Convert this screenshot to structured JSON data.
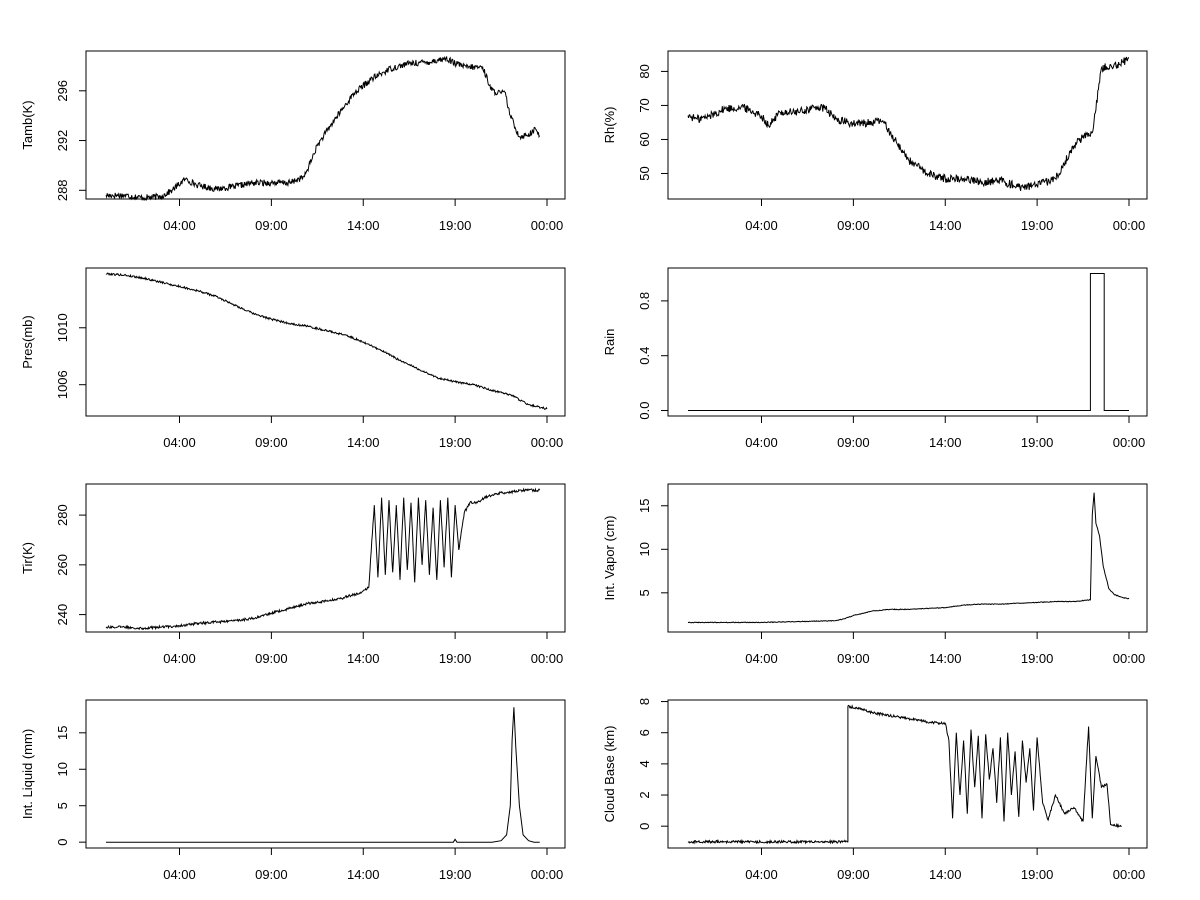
{
  "chart_data": [
    {
      "type": "line",
      "title": "",
      "xlabel": "",
      "ylabel": "Tamb(K)",
      "xlim": [
        0,
        24
      ],
      "ylim": [
        287.3,
        299.2
      ],
      "xticks": [
        {
          "v": 4,
          "label": "04:00"
        },
        {
          "v": 9,
          "label": "09:00"
        },
        {
          "v": 14,
          "label": "14:00"
        },
        {
          "v": 19,
          "label": "19:00"
        },
        {
          "v": 24,
          "label": "00:00"
        }
      ],
      "yticks": [
        {
          "v": 288,
          "label": "288"
        },
        {
          "v": 292,
          "label": "292"
        },
        {
          "v": 296,
          "label": "296"
        }
      ],
      "noise": 0.25,
      "series": [
        {
          "x": [
            0,
            1,
            2,
            3,
            3.6,
            4.3,
            5,
            6,
            7,
            8,
            9,
            10,
            10.8,
            11.5,
            12.5,
            13.5,
            14.5,
            15.5,
            16.5,
            17.5,
            18.5,
            19,
            19.6,
            20.5,
            21,
            21.5,
            21.7,
            22,
            22.5,
            23,
            23.4,
            23.6
          ],
          "y": [
            287.6,
            287.6,
            287.4,
            287.5,
            288.0,
            288.9,
            288.4,
            288.1,
            288.3,
            288.6,
            288.6,
            288.6,
            289.1,
            291.6,
            293.8,
            295.8,
            297.0,
            297.8,
            298.2,
            298.3,
            298.6,
            298.2,
            297.9,
            297.9,
            296.0,
            295.8,
            295.9,
            294.0,
            292.3,
            292.5,
            292.9,
            292.4
          ]
        }
      ]
    },
    {
      "type": "line",
      "title": "",
      "xlabel": "",
      "ylabel": "Rh(%)",
      "xlim": [
        0,
        24
      ],
      "ylim": [
        42.5,
        86
      ],
      "xticks": [
        {
          "v": 4,
          "label": "04:00"
        },
        {
          "v": 9,
          "label": "09:00"
        },
        {
          "v": 14,
          "label": "14:00"
        },
        {
          "v": 19,
          "label": "19:00"
        },
        {
          "v": 24,
          "label": "00:00"
        }
      ],
      "yticks": [
        {
          "v": 50,
          "label": "50"
        },
        {
          "v": 60,
          "label": "60"
        },
        {
          "v": 70,
          "label": "70"
        },
        {
          "v": 80,
          "label": "80"
        }
      ],
      "noise": 1.2,
      "series": [
        {
          "x": [
            0,
            0.5,
            1,
            2,
            3,
            4,
            4.4,
            5,
            6,
            7,
            7.5,
            8,
            9,
            10,
            10.6,
            11,
            12,
            13,
            14,
            15,
            16,
            17,
            18,
            19,
            20,
            21,
            21.5,
            22,
            22.5,
            23,
            23.5,
            24
          ],
          "y": [
            67.0,
            66.0,
            66.5,
            69.0,
            69.5,
            67.0,
            64.0,
            68.0,
            68.0,
            69.5,
            69.0,
            66.0,
            64.5,
            65.0,
            65.5,
            62.0,
            54.0,
            50.0,
            48.5,
            48.5,
            47.5,
            48.0,
            46.0,
            46.5,
            48.5,
            58.0,
            61.0,
            62.0,
            81.0,
            82.0,
            82.0,
            84.0
          ]
        }
      ]
    },
    {
      "type": "line",
      "title": "",
      "xlabel": "",
      "ylabel": "Pres(mb)",
      "xlim": [
        0,
        24
      ],
      "ylim": [
        1003.8,
        1014.2
      ],
      "xticks": [
        {
          "v": 4,
          "label": "04:00"
        },
        {
          "v": 9,
          "label": "09:00"
        },
        {
          "v": 14,
          "label": "14:00"
        },
        {
          "v": 19,
          "label": "19:00"
        },
        {
          "v": 24,
          "label": "00:00"
        }
      ],
      "yticks": [
        {
          "v": 1006,
          "label": "1006"
        },
        {
          "v": 1010,
          "label": "1010"
        }
      ],
      "noise": 0.07,
      "series": [
        {
          "x": [
            0,
            1,
            2,
            3,
            4,
            5,
            6,
            7,
            8,
            9,
            10,
            11,
            12,
            13,
            14,
            15,
            16,
            17,
            18,
            19,
            20,
            21,
            22,
            23,
            24
          ],
          "y": [
            1013.8,
            1013.7,
            1013.5,
            1013.2,
            1012.9,
            1012.6,
            1012.2,
            1011.6,
            1011.0,
            1010.6,
            1010.3,
            1010.1,
            1009.8,
            1009.5,
            1009.0,
            1008.4,
            1007.7,
            1007.1,
            1006.5,
            1006.2,
            1006.0,
            1005.6,
            1005.3,
            1004.6,
            1004.3
          ]
        }
      ]
    },
    {
      "type": "line",
      "title": "",
      "xlabel": "",
      "ylabel": "Rain",
      "xlim": [
        0,
        24
      ],
      "ylim": [
        -0.04,
        1.04
      ],
      "xticks": [
        {
          "v": 4,
          "label": "04:00"
        },
        {
          "v": 9,
          "label": "09:00"
        },
        {
          "v": 14,
          "label": "14:00"
        },
        {
          "v": 19,
          "label": "19:00"
        },
        {
          "v": 24,
          "label": "00:00"
        }
      ],
      "yticks": [
        {
          "v": 0.0,
          "label": "0.0"
        },
        {
          "v": 0.4,
          "label": "0.4"
        },
        {
          "v": 0.8,
          "label": "0.8"
        }
      ],
      "noise": 0,
      "series": [
        {
          "x": [
            0,
            21.9,
            21.9,
            22.65,
            22.65,
            24
          ],
          "y": [
            0,
            0,
            1.0,
            1.0,
            0,
            0
          ]
        }
      ]
    },
    {
      "type": "line",
      "title": "",
      "xlabel": "",
      "ylabel": "Tir(K)",
      "xlim": [
        0,
        24
      ],
      "ylim": [
        233,
        292.5
      ],
      "xticks": [
        {
          "v": 4,
          "label": "04:00"
        },
        {
          "v": 9,
          "label": "09:00"
        },
        {
          "v": 14,
          "label": "14:00"
        },
        {
          "v": 19,
          "label": "19:00"
        },
        {
          "v": 24,
          "label": "00:00"
        }
      ],
      "yticks": [
        {
          "v": 240,
          "label": "240"
        },
        {
          "v": 260,
          "label": "260"
        },
        {
          "v": 280,
          "label": "280"
        }
      ],
      "noise": 0.5,
      "series": [
        {
          "x": [
            0,
            1,
            2,
            3,
            4,
            5,
            6,
            7,
            8,
            9,
            10,
            11,
            12,
            12.8,
            13.2,
            13.8,
            14.3,
            14.6,
            14.8,
            15.0,
            15.2,
            15.4,
            15.6,
            15.8,
            16.0,
            16.2,
            16.4,
            16.6,
            16.8,
            17.0,
            17.2,
            17.4,
            17.6,
            17.8,
            18.0,
            18.2,
            18.4,
            18.6,
            18.8,
            19.0,
            19.2,
            19.5,
            19.8,
            20.2,
            20.6,
            21,
            21.5,
            22,
            22.5,
            23,
            23.6
          ],
          "y": [
            235,
            235,
            234.5,
            235,
            235.5,
            236.5,
            237,
            237.5,
            238.5,
            240.5,
            242.5,
            244.5,
            245.5,
            246.5,
            247.5,
            248.5,
            251,
            284,
            255,
            287,
            256,
            286,
            257,
            284,
            254,
            287,
            258,
            285,
            253,
            287,
            260,
            286,
            256,
            283,
            254,
            286,
            259,
            287,
            255,
            284,
            266,
            281,
            285,
            285,
            287,
            288,
            289,
            289,
            290,
            290,
            290
          ]
        }
      ]
    },
    {
      "type": "line",
      "title": "",
      "xlabel": "",
      "ylabel": "Int. Vapor (cm)",
      "xlim": [
        0,
        24
      ],
      "ylim": [
        0.5,
        17.5
      ],
      "xticks": [
        {
          "v": 4,
          "label": "04:00"
        },
        {
          "v": 9,
          "label": "09:00"
        },
        {
          "v": 14,
          "label": "14:00"
        },
        {
          "v": 19,
          "label": "19:00"
        },
        {
          "v": 24,
          "label": "00:00"
        }
      ],
      "yticks": [
        {
          "v": 5,
          "label": "5"
        },
        {
          "v": 10,
          "label": "10"
        },
        {
          "v": 15,
          "label": "15"
        }
      ],
      "noise": 0.04,
      "series": [
        {
          "x": [
            0,
            2,
            4,
            6,
            8,
            8.5,
            9,
            10,
            11,
            12,
            13,
            14,
            15,
            16,
            17,
            18,
            19,
            20,
            21,
            21.9,
            22.0,
            22.1,
            22.2,
            22.4,
            22.6,
            22.9,
            23.2,
            23.6,
            24
          ],
          "y": [
            1.6,
            1.6,
            1.6,
            1.7,
            1.8,
            2.0,
            2.4,
            2.9,
            3.1,
            3.1,
            3.2,
            3.3,
            3.6,
            3.7,
            3.7,
            3.8,
            3.9,
            4.0,
            4.0,
            4.2,
            14.0,
            16.5,
            13.0,
            11.5,
            8.0,
            5.5,
            4.8,
            4.5,
            4.3
          ]
        }
      ]
    },
    {
      "type": "line",
      "title": "",
      "xlabel": "",
      "ylabel": "Int. Liquid (mm)",
      "xlim": [
        0,
        24
      ],
      "ylim": [
        -0.8,
        19.5
      ],
      "xticks": [
        {
          "v": 4,
          "label": "04:00"
        },
        {
          "v": 9,
          "label": "09:00"
        },
        {
          "v": 14,
          "label": "14:00"
        },
        {
          "v": 19,
          "label": "19:00"
        },
        {
          "v": 24,
          "label": "00:00"
        }
      ],
      "yticks": [
        {
          "v": 0,
          "label": "0"
        },
        {
          "v": 5,
          "label": "5"
        },
        {
          "v": 10,
          "label": "10"
        },
        {
          "v": 15,
          "label": "15"
        }
      ],
      "noise": 0,
      "series": [
        {
          "x": [
            0,
            18.9,
            19.0,
            19.1,
            21.0,
            21.5,
            21.8,
            22.0,
            22.1,
            22.2,
            22.3,
            22.5,
            22.7,
            23.0,
            23.3,
            23.6
          ],
          "y": [
            0,
            0,
            0.4,
            0,
            0,
            0.2,
            1.0,
            5.0,
            14.0,
            18.5,
            13.0,
            5.0,
            1.0,
            0.2,
            0,
            0
          ]
        }
      ]
    },
    {
      "type": "line",
      "title": "",
      "xlabel": "",
      "ylabel": "Cloud Base (km)",
      "xlim": [
        0,
        24
      ],
      "ylim": [
        -1.4,
        8.1
      ],
      "xticks": [
        {
          "v": 4,
          "label": "04:00"
        },
        {
          "v": 9,
          "label": "09:00"
        },
        {
          "v": 14,
          "label": "14:00"
        },
        {
          "v": 19,
          "label": "19:00"
        },
        {
          "v": 24,
          "label": "00:00"
        }
      ],
      "yticks": [
        {
          "v": 0,
          "label": "0"
        },
        {
          "v": 2,
          "label": "2"
        },
        {
          "v": 4,
          "label": "4"
        },
        {
          "v": 6,
          "label": "6"
        },
        {
          "v": 8,
          "label": "8"
        }
      ],
      "noise": 0.08,
      "series": [
        {
          "x": [
            0,
            8.7,
            8.7,
            9.5,
            10,
            11,
            12,
            13,
            14,
            14.2,
            14.4,
            14.6,
            14.8,
            15.0,
            15.2,
            15.4,
            15.6,
            15.8,
            16.0,
            16.2,
            16.4,
            16.6,
            16.8,
            17.0,
            17.2,
            17.4,
            17.6,
            17.8,
            18.0,
            18.2,
            18.4,
            18.6,
            18.8,
            19.0,
            19.3,
            19.6,
            20.0,
            20.5,
            21.0,
            21.5,
            21.8,
            22.0,
            22.2,
            22.5,
            22.8,
            23.0,
            23.6
          ],
          "y": [
            -1.0,
            -1.0,
            7.7,
            7.5,
            7.3,
            7.1,
            6.9,
            6.7,
            6.6,
            5.5,
            0.5,
            6.0,
            2.0,
            5.5,
            0.8,
            6.2,
            2.5,
            5.8,
            0.5,
            5.9,
            3.0,
            5.0,
            1.5,
            5.7,
            0.3,
            6.0,
            2.0,
            4.8,
            0.6,
            5.5,
            2.8,
            5.0,
            1.0,
            5.7,
            1.5,
            0.4,
            2.0,
            0.8,
            1.2,
            0.3,
            6.4,
            0.5,
            4.5,
            2.5,
            2.7,
            0.1,
            0.0
          ]
        }
      ]
    }
  ]
}
